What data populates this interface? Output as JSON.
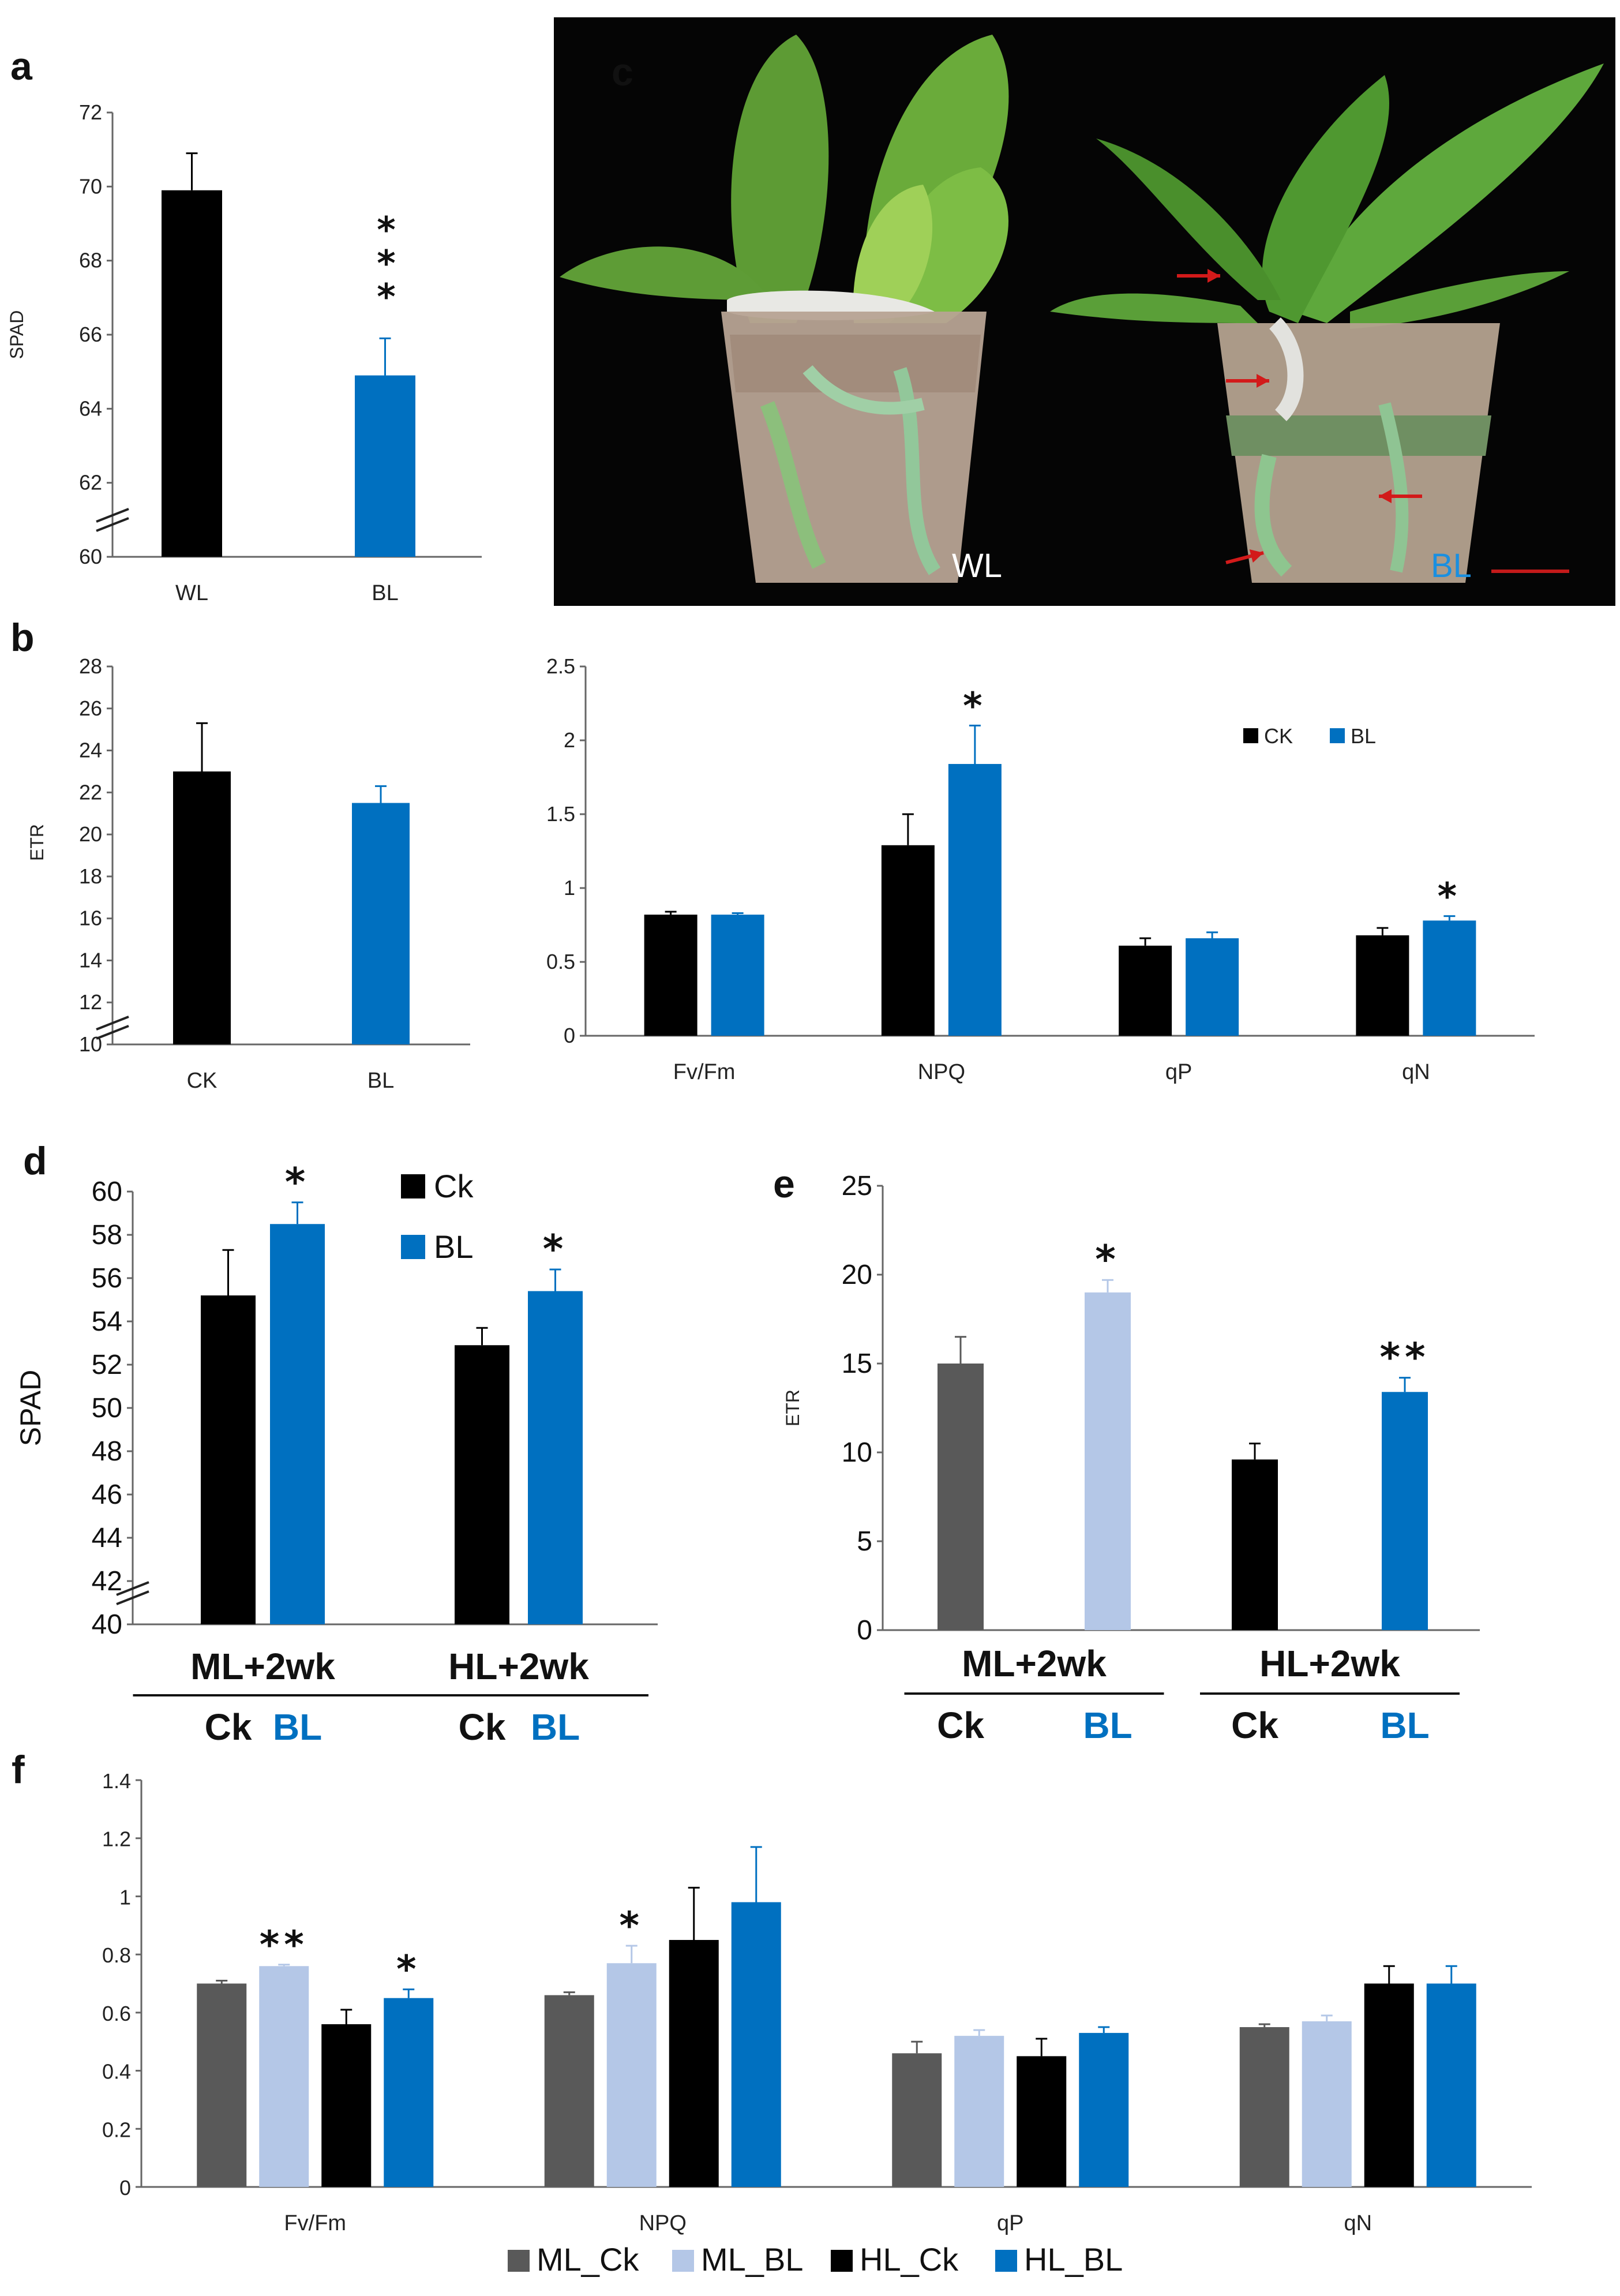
{
  "panel_letters": {
    "a": "a",
    "b": "b",
    "c": "c",
    "d": "d",
    "e": "e",
    "f": "f"
  },
  "photo": {
    "left_label": "WL",
    "right_label": "BL",
    "right_label_color": "#1a8fe0",
    "arrow_color": "#d21a1a",
    "scale_bar_color": "#c41a1a"
  },
  "colors": {
    "black": "#000000",
    "blue": "#0070c0",
    "gray": "#595959",
    "light_blue": "#b4c7e7"
  },
  "chart_data": [
    {
      "id": "a",
      "type": "bar",
      "ylabel": "SPAD",
      "ylim": [
        60,
        72
      ],
      "yticks": [
        60,
        62,
        64,
        66,
        68,
        70,
        72
      ],
      "axis_break": true,
      "categories": [
        "WL",
        "BL"
      ],
      "values": [
        69.9,
        64.9
      ],
      "errors": [
        1.0,
        1.0
      ],
      "colors": [
        "#000000",
        "#0070c0"
      ],
      "significance": [
        "",
        "***"
      ]
    },
    {
      "id": "b-left",
      "type": "bar",
      "ylabel": "ETR",
      "ylim": [
        10,
        28
      ],
      "yticks": [
        10,
        12,
        14,
        16,
        18,
        20,
        22,
        24,
        26,
        28
      ],
      "axis_break": true,
      "categories": [
        "CK",
        "BL"
      ],
      "values": [
        23.0,
        21.5
      ],
      "errors": [
        2.3,
        0.8
      ],
      "colors": [
        "#000000",
        "#0070c0"
      ],
      "significance": [
        "",
        ""
      ]
    },
    {
      "id": "b-right",
      "type": "bar",
      "ylim": [
        0,
        2.5
      ],
      "yticks": [
        "0",
        "0.5",
        "1",
        "1.5",
        "2",
        "2.5"
      ],
      "categories": [
        "Fv/Fm",
        "NPQ",
        "qP",
        "qN"
      ],
      "series": [
        {
          "name": "CK",
          "color": "#000000",
          "values": [
            0.82,
            1.29,
            0.61,
            0.68
          ],
          "errors": [
            0.02,
            0.21,
            0.05,
            0.05
          ],
          "significance": [
            "",
            "",
            "",
            ""
          ]
        },
        {
          "name": "BL",
          "color": "#0070c0",
          "values": [
            0.82,
            1.84,
            0.66,
            0.78
          ],
          "errors": [
            0.01,
            0.26,
            0.04,
            0.03
          ],
          "significance": [
            "",
            "*",
            "",
            "*"
          ]
        }
      ],
      "legend": [
        "CK",
        "BL"
      ]
    },
    {
      "id": "d",
      "type": "bar",
      "ylabel": "SPAD",
      "ylim": [
        40,
        60
      ],
      "yticks": [
        40,
        42,
        44,
        46,
        48,
        50,
        52,
        54,
        56,
        58,
        60
      ],
      "axis_break": true,
      "groups": [
        {
          "title": "ML+2wk",
          "labels": [
            "Ck",
            "BL"
          ],
          "values": [
            55.2,
            58.5
          ],
          "errors": [
            2.1,
            1.0
          ],
          "colors": [
            "#000000",
            "#0070c0"
          ],
          "significance": [
            "",
            "*"
          ]
        },
        {
          "title": "HL+2wk",
          "labels": [
            "Ck",
            "BL"
          ],
          "values": [
            52.9,
            55.4
          ],
          "errors": [
            0.8,
            1.0
          ],
          "colors": [
            "#000000",
            "#0070c0"
          ],
          "significance": [
            "",
            "*"
          ]
        }
      ],
      "legend": [
        {
          "name": "Ck",
          "color": "#000000"
        },
        {
          "name": "BL",
          "color": "#0070c0"
        }
      ]
    },
    {
      "id": "e",
      "type": "bar",
      "ylabel": "ETR",
      "ylim": [
        0,
        25
      ],
      "yticks": [
        0,
        5,
        10,
        15,
        20,
        25
      ],
      "groups": [
        {
          "title": "ML+2wk",
          "labels": [
            "Ck",
            "BL"
          ],
          "values": [
            15.0,
            19.0
          ],
          "errors": [
            1.5,
            0.7
          ],
          "colors": [
            "#595959",
            "#b4c7e7"
          ],
          "significance": [
            "",
            "*"
          ]
        },
        {
          "title": "HL+2wk",
          "labels": [
            "Ck",
            "BL"
          ],
          "values": [
            9.6,
            13.4
          ],
          "errors": [
            0.9,
            0.8
          ],
          "colors": [
            "#000000",
            "#0070c0"
          ],
          "significance": [
            "",
            "**"
          ]
        }
      ]
    },
    {
      "id": "f",
      "type": "bar",
      "ylim": [
        0,
        1.4
      ],
      "yticks": [
        "0",
        "0.2",
        "0.4",
        "0.6",
        "0.8",
        "1",
        "1.2",
        "1.4"
      ],
      "categories": [
        "Fv/Fm",
        "NPQ",
        "qP",
        "qN"
      ],
      "series": [
        {
          "name": "ML_Ck",
          "color": "#595959",
          "values": [
            0.7,
            0.66,
            0.46,
            0.55
          ],
          "errors": [
            0.01,
            0.01,
            0.04,
            0.01
          ],
          "significance": [
            "",
            "",
            "",
            ""
          ]
        },
        {
          "name": "ML_BL",
          "color": "#b4c7e7",
          "values": [
            0.76,
            0.77,
            0.52,
            0.57
          ],
          "errors": [
            0.005,
            0.06,
            0.02,
            0.02
          ],
          "significance": [
            "**",
            "*",
            "",
            ""
          ]
        },
        {
          "name": "HL_Ck",
          "color": "#000000",
          "values": [
            0.56,
            0.85,
            0.45,
            0.7
          ],
          "errors": [
            0.05,
            0.18,
            0.06,
            0.06
          ],
          "significance": [
            "",
            "",
            "",
            ""
          ]
        },
        {
          "name": "HL_BL",
          "color": "#0070c0",
          "values": [
            0.65,
            0.98,
            0.53,
            0.7
          ],
          "errors": [
            0.03,
            0.19,
            0.02,
            0.06
          ],
          "significance": [
            "*",
            "",
            "",
            ""
          ]
        }
      ],
      "legend": [
        "ML_Ck",
        "ML_BL",
        "HL_Ck",
        "HL_BL"
      ]
    }
  ]
}
